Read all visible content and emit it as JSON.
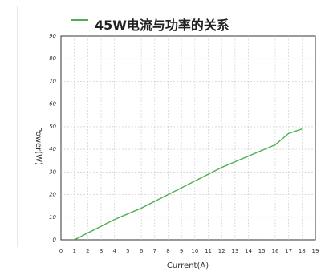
{
  "chart_data": {
    "type": "line",
    "title": "",
    "xlabel": "Current(A)",
    "ylabel": "Power(W)",
    "xlim": [
      0,
      19
    ],
    "ylim": [
      0,
      90
    ],
    "x_ticks": [
      0,
      1,
      2,
      3,
      4,
      5,
      6,
      7,
      8,
      9,
      10,
      11,
      12,
      13,
      14,
      15,
      16,
      17,
      18,
      19
    ],
    "y_ticks": [
      0,
      10,
      20,
      30,
      40,
      50,
      60,
      70,
      80,
      90
    ],
    "grid": true,
    "legend_position": "top",
    "series": [
      {
        "name": "45W电流与功率的关系",
        "color": "#4caf50",
        "x": [
          1,
          2,
          3,
          4,
          5,
          6,
          7,
          8,
          9,
          10,
          11,
          12,
          13,
          14,
          15,
          16,
          17,
          18
        ],
        "y": [
          0,
          3,
          6,
          9,
          11.5,
          14,
          17,
          20,
          23,
          26,
          29,
          32,
          34.5,
          37,
          39.5,
          42,
          47,
          49
        ]
      }
    ]
  }
}
